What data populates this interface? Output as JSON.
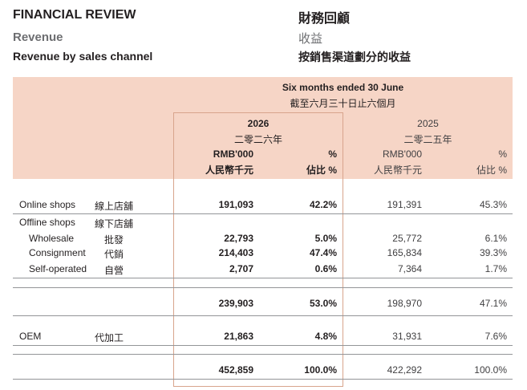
{
  "heading": {
    "title_en": "FINANCIAL REVIEW",
    "title_zh": "財務回顧",
    "section_en": "Revenue",
    "section_zh": "收益",
    "subsection_en": "Revenue by sales channel",
    "subsection_zh": "按銷售渠道劃分的收益"
  },
  "table": {
    "period_en": "Six months ended 30 June",
    "period_zh": "截至六月三十日止六個月",
    "columns": [
      {
        "year": "2026",
        "year_zh": "二零二六年",
        "unit_en": "RMB'000",
        "unit_zh": "人民幣千元",
        "pct_en": "%",
        "pct_zh": "佔比 %"
      },
      {
        "year": "2025",
        "year_zh": "二零二五年",
        "unit_en": "RMB'000",
        "unit_zh": "人民幣千元",
        "pct_en": "%",
        "pct_zh": "佔比 %"
      }
    ],
    "rows": [
      {
        "label_en": "Online shops",
        "label_zh": "線上店舖",
        "v2026": "191,093",
        "p2026": "42.2%",
        "v2025": "191,391",
        "p2025": "45.3%"
      },
      {
        "label_en": "Offline shops",
        "label_zh": "線下店舖",
        "v2026": "",
        "p2026": "",
        "v2025": "",
        "p2025": ""
      },
      {
        "label_en": "Wholesale",
        "label_zh": "批發",
        "v2026": "22,793",
        "p2026": "5.0%",
        "v2025": "25,772",
        "p2025": "6.1%"
      },
      {
        "label_en": "Consignment",
        "label_zh": "代銷",
        "v2026": "214,403",
        "p2026": "47.4%",
        "v2025": "165,834",
        "p2025": "39.3%"
      },
      {
        "label_en": "Self-operated",
        "label_zh": "自營",
        "v2026": "2,707",
        "p2026": "0.6%",
        "v2025": "7,364",
        "p2025": "1.7%"
      },
      {
        "label_en": "",
        "label_zh": "",
        "v2026": "239,903",
        "p2026": "53.0%",
        "v2025": "198,970",
        "p2025": "47.1%"
      },
      {
        "label_en": "OEM",
        "label_zh": "代加工",
        "v2026": "21,863",
        "p2026": "4.8%",
        "v2025": "31,931",
        "p2025": "7.6%"
      },
      {
        "label_en": "",
        "label_zh": "",
        "v2026": "452,859",
        "p2026": "100.0%",
        "v2025": "422,292",
        "p2025": "100.0%"
      }
    ]
  }
}
